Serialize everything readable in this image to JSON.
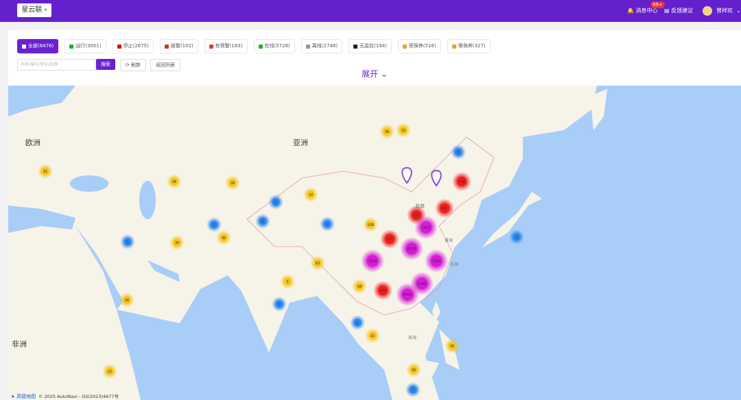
{
  "header": {
    "brand": "星云联",
    "notifications": "消息中心",
    "badge": "99+",
    "feedback": "反馈建议",
    "user": "曾祥欢"
  },
  "filters": [
    {
      "label": "全部(8476)",
      "color": "#ffffff"
    },
    {
      "label": "运行(3051)",
      "color": "#18b618"
    },
    {
      "label": "停止(2675)",
      "color": "#e01010"
    },
    {
      "label": "报警(102)",
      "color": "#c0392b"
    },
    {
      "label": "有预警(183)",
      "color": "#e03a3a"
    },
    {
      "label": "在线(5728)",
      "color": "#18b618"
    },
    {
      "label": "离线(2748)",
      "color": "#999999"
    },
    {
      "label": "无监控(194)",
      "color": "#222222"
    },
    {
      "label": "预保养(516)",
      "color": "#f0a020"
    },
    {
      "label": "需保养(327)",
      "color": "#f0a020"
    }
  ],
  "search": {
    "placeholder": "名称/编号/型号/品牌",
    "search": "搜索",
    "refresh": "刷新",
    "back": "返回列表"
  },
  "expand": "展开",
  "map": {
    "labels": [
      "欧洲",
      "亚洲",
      "非洲",
      "北京",
      "黄海",
      "东海",
      "南海"
    ],
    "markers": [
      {
        "label": "36",
        "kind": "yellow"
      },
      {
        "label": "32",
        "kind": "yellow"
      },
      {
        "label": "31",
        "kind": "yellow"
      },
      {
        "label": "36",
        "kind": "yellow"
      },
      {
        "label": "38",
        "kind": "yellow"
      },
      {
        "label": "32",
        "kind": "yellow"
      },
      {
        "label": "108",
        "kind": "yellow"
      },
      {
        "label": "30",
        "kind": "yellow"
      },
      {
        "label": "36",
        "kind": "yellow"
      },
      {
        "label": "63",
        "kind": "yellow"
      },
      {
        "label": "3",
        "kind": "yellow"
      },
      {
        "label": "36",
        "kind": "yellow"
      },
      {
        "label": "58",
        "kind": "yellow"
      },
      {
        "label": "32",
        "kind": "yellow"
      },
      {
        "label": "36",
        "kind": "yellow"
      },
      {
        "label": "36",
        "kind": "yellow"
      },
      {
        "label": "22",
        "kind": "yellow"
      },
      {
        "label": "5",
        "kind": "blue"
      },
      {
        "label": "5",
        "kind": "blue"
      },
      {
        "label": "1",
        "kind": "blue"
      },
      {
        "label": "5",
        "kind": "blue"
      },
      {
        "label": "1",
        "kind": "blue"
      },
      {
        "label": "1",
        "kind": "blue"
      },
      {
        "label": "2",
        "kind": "blue"
      },
      {
        "label": "1",
        "kind": "blue"
      },
      {
        "label": "1",
        "kind": "blue"
      },
      {
        "label": "1",
        "kind": "blue"
      },
      {
        "label": "146",
        "kind": "red"
      },
      {
        "label": "84",
        "kind": "red"
      },
      {
        "label": "152",
        "kind": "red"
      },
      {
        "label": "47",
        "kind": "red"
      },
      {
        "label": "100",
        "kind": "red"
      },
      {
        "label": "1455",
        "kind": "magenta"
      },
      {
        "label": "2078",
        "kind": "magenta"
      },
      {
        "label": "1360",
        "kind": "magenta"
      },
      {
        "label": "1508",
        "kind": "magenta"
      },
      {
        "label": "1240",
        "kind": "magenta"
      },
      {
        "label": "4682",
        "kind": "magenta"
      }
    ],
    "attribution": {
      "logo": "高德地图",
      "text": "© 2025 AutoNavi - GS(2023)4677号"
    }
  }
}
